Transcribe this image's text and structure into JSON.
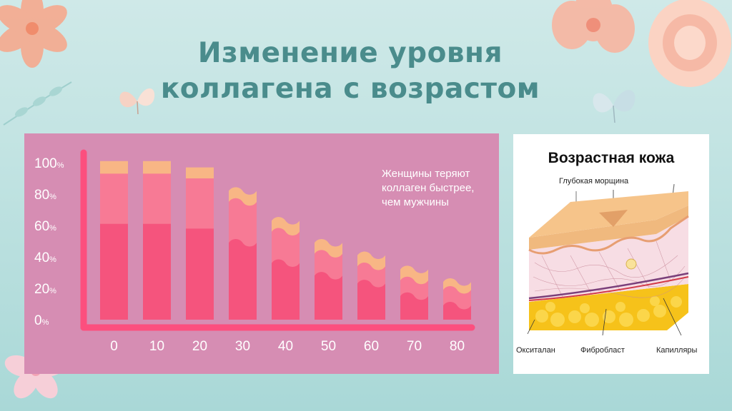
{
  "slide": {
    "title_line1": "Изменение уровня",
    "title_line2": "коллагена с возрастом"
  },
  "colors": {
    "background": "#bfe2e1",
    "title": "#4a8c8c",
    "panel": "#d68db3",
    "bar_dark": "#f5547d",
    "bar_mid": "#f77a95",
    "bar_top": "#f8b685",
    "axis": "#fc4f7e"
  },
  "chart_data": {
    "type": "bar",
    "title": "",
    "xlabel": "",
    "ylabel": "",
    "categories": [
      "0",
      "10",
      "20",
      "30",
      "40",
      "50",
      "60",
      "70",
      "80"
    ],
    "y_ticks": [
      {
        "value": 100,
        "label": "100",
        "unit": "%"
      },
      {
        "value": 80,
        "label": "80",
        "unit": "%"
      },
      {
        "value": 60,
        "label": "60",
        "unit": "%"
      },
      {
        "value": 40,
        "label": "40",
        "unit": "%"
      },
      {
        "value": 20,
        "label": "20",
        "unit": "%"
      },
      {
        "value": 0,
        "label": "0",
        "unit": "%"
      }
    ],
    "ylim": [
      0,
      100
    ],
    "grid": false,
    "stack_levels": [
      {
        "values": [
          61,
          61,
          58,
          49,
          36,
          28,
          23,
          15,
          9
        ]
      },
      {
        "values": [
          93,
          93,
          90,
          75,
          56,
          42,
          34,
          25,
          19
        ]
      },
      {
        "values": [
          101,
          101,
          97,
          82,
          63,
          49,
          41,
          32,
          24
        ]
      }
    ],
    "wavy_from_index": 3,
    "annotation": "Женщины теряют коллаген быстрее, чем мужчины"
  },
  "skin_diagram": {
    "title": "Возрастная кожа",
    "label_wrinkle": "Глубокая морщина",
    "label_oxytalan": "Окситалан",
    "label_fibroblast": "Фибробласт",
    "label_capillaries": "Капилляры"
  }
}
